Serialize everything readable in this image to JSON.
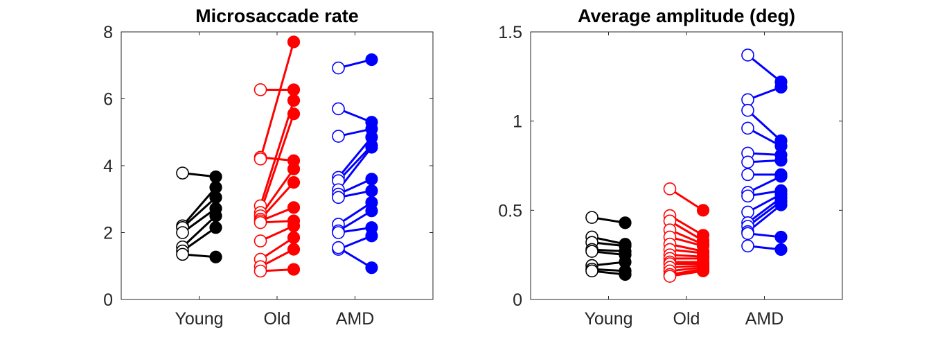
{
  "colors": {
    "Young": "#000000",
    "Old": "#ff0000",
    "AMD": "#0000ff"
  },
  "chart_data": [
    {
      "type": "scatter",
      "title": "Microsaccade rate",
      "xlabel": "",
      "ylabel": "",
      "categories": [
        "Young",
        "Old",
        "AMD"
      ],
      "xlim": [
        0,
        4
      ],
      "ylim": [
        0,
        8
      ],
      "yticks": [
        0,
        2,
        4,
        6,
        8
      ],
      "ytick_labels": [
        "0",
        "2",
        "4",
        "6",
        "8"
      ],
      "marker_open": "condition 1 (left, open circles)",
      "marker_filled": "condition 2 (right, filled circles)",
      "series": [
        {
          "name": "Young",
          "pairs": [
            [
              3.78,
              3.67
            ],
            [
              2.2,
              3.35
            ],
            [
              2.15,
              3.05
            ],
            [
              2.0,
              2.72
            ],
            [
              1.57,
              2.5
            ],
            [
              1.45,
              2.15
            ],
            [
              1.35,
              1.27
            ]
          ]
        },
        {
          "name": "Old",
          "pairs": [
            [
              6.27,
              6.27
            ],
            [
              4.25,
              4.15
            ],
            [
              4.2,
              7.7
            ],
            [
              2.8,
              5.95
            ],
            [
              2.6,
              5.55
            ],
            [
              2.5,
              3.9
            ],
            [
              2.4,
              3.5
            ],
            [
              2.35,
              2.75
            ],
            [
              2.3,
              2.35
            ],
            [
              1.75,
              2.2
            ],
            [
              1.2,
              1.85
            ],
            [
              0.98,
              1.5
            ],
            [
              0.85,
              0.9
            ]
          ]
        },
        {
          "name": "AMD",
          "pairs": [
            [
              6.92,
              7.17
            ],
            [
              5.7,
              5.3
            ],
            [
              4.88,
              5.1
            ],
            [
              3.65,
              4.85
            ],
            [
              3.55,
              4.6
            ],
            [
              3.28,
              4.55
            ],
            [
              3.15,
              3.6
            ],
            [
              3.05,
              3.25
            ],
            [
              2.25,
              2.9
            ],
            [
              2.05,
              2.65
            ],
            [
              2.0,
              2.15
            ],
            [
              1.5,
              1.9
            ],
            [
              1.55,
              0.95
            ]
          ]
        }
      ]
    },
    {
      "type": "scatter",
      "title": "Average amplitude (deg)",
      "xlabel": "",
      "ylabel": "",
      "categories": [
        "Young",
        "Old",
        "AMD"
      ],
      "xlim": [
        0,
        4
      ],
      "ylim": [
        0,
        1.5
      ],
      "yticks": [
        0,
        0.5,
        1,
        1.5
      ],
      "ytick_labels": [
        "0",
        "0.5",
        "1",
        "1.5"
      ],
      "marker_open": "condition 1 (left, open circles)",
      "marker_filled": "condition 2 (right, filled circles)",
      "series": [
        {
          "name": "Young",
          "pairs": [
            [
              0.46,
              0.43
            ],
            [
              0.35,
              0.31
            ],
            [
              0.32,
              0.3
            ],
            [
              0.28,
              0.27
            ],
            [
              0.27,
              0.25
            ],
            [
              0.19,
              0.21
            ],
            [
              0.17,
              0.16
            ],
            [
              0.16,
              0.14
            ]
          ]
        },
        {
          "name": "Old",
          "pairs": [
            [
              0.62,
              0.5
            ],
            [
              0.47,
              0.36
            ],
            [
              0.44,
              0.33
            ],
            [
              0.39,
              0.31
            ],
            [
              0.35,
              0.3
            ],
            [
              0.31,
              0.27
            ],
            [
              0.28,
              0.26
            ],
            [
              0.25,
              0.24
            ],
            [
              0.23,
              0.23
            ],
            [
              0.21,
              0.21
            ],
            [
              0.2,
              0.2
            ],
            [
              0.18,
              0.19
            ],
            [
              0.16,
              0.18
            ],
            [
              0.14,
              0.17
            ],
            [
              0.13,
              0.16
            ]
          ]
        },
        {
          "name": "AMD",
          "pairs": [
            [
              1.37,
              1.22
            ],
            [
              1.12,
              1.19
            ],
            [
              1.06,
              0.89
            ],
            [
              0.96,
              0.86
            ],
            [
              0.82,
              0.81
            ],
            [
              0.77,
              0.78
            ],
            [
              0.7,
              0.7
            ],
            [
              0.6,
              0.69
            ],
            [
              0.58,
              0.61
            ],
            [
              0.49,
              0.59
            ],
            [
              0.43,
              0.57
            ],
            [
              0.41,
              0.55
            ],
            [
              0.38,
              0.53
            ],
            [
              0.37,
              0.35
            ],
            [
              0.3,
              0.28
            ]
          ]
        }
      ]
    }
  ]
}
